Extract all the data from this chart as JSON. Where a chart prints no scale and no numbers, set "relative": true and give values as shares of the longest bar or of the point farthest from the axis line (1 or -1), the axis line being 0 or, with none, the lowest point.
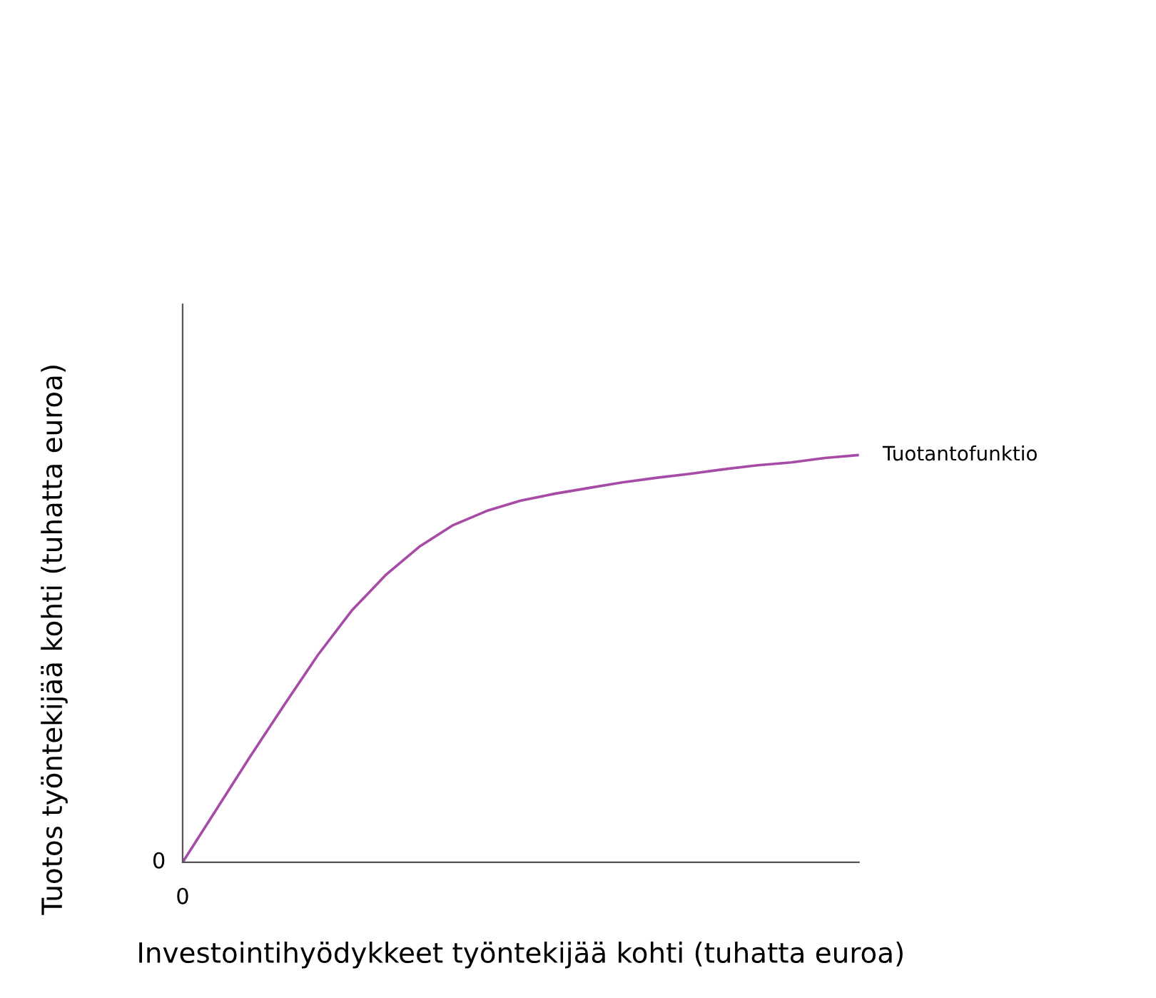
{
  "chart_data": {
    "type": "line",
    "relative": true,
    "xlabel": "Investointihyödykkeet työntekijää kohti (tuhatta euroa)",
    "ylabel": "Tuotos työntekijää kohti (tuhatta euroa)",
    "categories": [
      null,
      null,
      null,
      null,
      null,
      null,
      null,
      null,
      null,
      null,
      null,
      null,
      null,
      null,
      null,
      null,
      null,
      null,
      null,
      null,
      null
    ],
    "series": [
      {
        "name": "Tuotantofunktio",
        "color": "#a64ca6",
        "values": [
          0,
          0.13,
          0.26,
          0.386,
          0.509,
          0.618,
          0.705,
          0.775,
          0.828,
          0.863,
          0.888,
          0.905,
          0.919,
          0.933,
          0.944,
          0.954,
          0.965,
          0.975,
          0.982,
          0.993,
          1.0
        ]
      }
    ],
    "annotations": [
      "0",
      "0"
    ],
    "legend": false,
    "marker": "none",
    "line_style": "solid"
  }
}
